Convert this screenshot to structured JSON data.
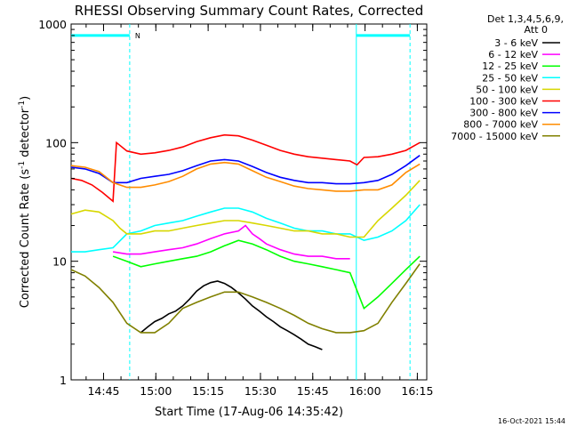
{
  "chart_data": {
    "type": "line",
    "title": "RHESSI Observing Summary Count Rates, Corrected",
    "xlabel": "Start Time (17-Aug-06 14:35:42)",
    "ylabel_main": "Corrected Count Rate (s",
    "ylabel_sup1": "-1",
    "ylabel_mid": " detector",
    "ylabel_sup2": "-1",
    "ylabel_end": ")",
    "x_unit": "minutes since 14:35:42",
    "xlim": [
      0,
      102
    ],
    "ylim": [
      1,
      1000
    ],
    "yscale": "log",
    "xticks": [
      {
        "v": 9.3,
        "label": "14:45"
      },
      {
        "v": 24.3,
        "label": "15:00"
      },
      {
        "v": 39.3,
        "label": "15:15"
      },
      {
        "v": 54.3,
        "label": "15:30"
      },
      {
        "v": 69.3,
        "label": "15:45"
      },
      {
        "v": 84.3,
        "label": "16:00"
      },
      {
        "v": 99.3,
        "label": "16:15"
      }
    ],
    "yticks": [
      {
        "v": 1,
        "label": "1"
      },
      {
        "v": 10,
        "label": "10"
      },
      {
        "v": 100,
        "label": "100"
      },
      {
        "v": 1000,
        "label": "1000"
      }
    ],
    "legend_header": [
      "Det 1,3,4,5,6,9,",
      "Att 0"
    ],
    "legend_position": "right",
    "night_flag": "N",
    "night_x": [
      0,
      16.8
    ],
    "saa_x": [
      81.8,
      97.2
    ],
    "night_level": 800,
    "series": [
      {
        "name": "3 - 6 keV",
        "color": "#000000",
        "x": [
          20,
          22,
          24,
          26,
          28,
          30,
          32,
          34,
          36,
          38,
          40,
          42,
          44,
          46,
          48,
          50,
          52,
          54,
          56,
          58,
          60,
          62,
          64,
          66,
          68,
          70,
          72
        ],
        "y": [
          2.5,
          2.8,
          3.1,
          3.3,
          3.6,
          3.8,
          4.2,
          4.8,
          5.6,
          6.2,
          6.6,
          6.8,
          6.5,
          6.0,
          5.4,
          4.8,
          4.2,
          3.8,
          3.4,
          3.1,
          2.8,
          2.6,
          2.4,
          2.2,
          2.0,
          1.9,
          1.8
        ]
      },
      {
        "name": "6 - 12 keV",
        "color": "#ff00ff",
        "x": [
          12,
          16,
          20,
          24,
          28,
          32,
          36,
          40,
          44,
          48,
          50,
          52,
          54,
          56,
          60,
          64,
          68,
          72,
          76,
          80
        ],
        "y": [
          12,
          11.5,
          11.5,
          12,
          12.5,
          13,
          14,
          15.5,
          17,
          18,
          20,
          17,
          15.5,
          14,
          12.5,
          11.5,
          11,
          11,
          10.5,
          10.5
        ]
      },
      {
        "name": "12 - 25 keV",
        "color": "#00ff00",
        "x": [
          12,
          16,
          20,
          24,
          28,
          32,
          36,
          40,
          44,
          48,
          52,
          56,
          60,
          64,
          68,
          72,
          76,
          80,
          84,
          88,
          92,
          96,
          100
        ],
        "y": [
          11,
          10,
          9,
          9.5,
          10,
          10.5,
          11,
          12,
          13.5,
          15,
          14,
          12.5,
          11,
          10,
          9.5,
          9,
          8.5,
          8,
          4,
          5,
          6.5,
          8.5,
          11
        ]
      },
      {
        "name": "25 - 50 keV",
        "color": "#00ffff",
        "x": [
          0,
          4,
          8,
          12,
          16,
          20,
          24,
          28,
          32,
          36,
          40,
          44,
          48,
          52,
          56,
          60,
          64,
          68,
          72,
          76,
          80,
          84,
          88,
          92,
          96,
          100
        ],
        "y": [
          12,
          12,
          12.5,
          13,
          17,
          18,
          20,
          21,
          22,
          24,
          26,
          28,
          28,
          26,
          23,
          21,
          19,
          18,
          18,
          17,
          17,
          15,
          16,
          18,
          22,
          30
        ]
      },
      {
        "name": "50 - 100 keV",
        "color": "#d7d700",
        "x": [
          0,
          4,
          8,
          12,
          14,
          16,
          20,
          24,
          28,
          32,
          36,
          40,
          44,
          48,
          52,
          56,
          60,
          64,
          68,
          72,
          76,
          80,
          84,
          88,
          92,
          96,
          100
        ],
        "y": [
          25,
          27,
          26,
          22,
          19,
          17,
          17,
          18,
          18,
          19,
          20,
          21,
          22,
          22,
          21,
          20,
          19,
          18,
          18,
          17,
          17,
          16,
          16,
          22,
          28,
          36,
          48
        ]
      },
      {
        "name": "100 - 300 keV",
        "color": "#ff0000",
        "x": [
          0,
          3,
          6,
          9,
          12,
          13,
          16,
          20,
          24,
          28,
          32,
          36,
          40,
          44,
          48,
          52,
          56,
          60,
          64,
          68,
          72,
          76,
          80,
          82,
          84,
          88,
          92,
          96,
          100
        ],
        "y": [
          50,
          48,
          44,
          38,
          32,
          100,
          85,
          80,
          82,
          86,
          92,
          102,
          110,
          116,
          114,
          105,
          95,
          86,
          80,
          76,
          74,
          72,
          70,
          65,
          75,
          76,
          80,
          86,
          100
        ]
      },
      {
        "name": "300 - 800 keV",
        "color": "#0000ff",
        "x": [
          0,
          4,
          8,
          12,
          16,
          20,
          24,
          28,
          32,
          36,
          40,
          44,
          48,
          52,
          56,
          60,
          64,
          68,
          72,
          76,
          80,
          84,
          88,
          92,
          96,
          100
        ],
        "y": [
          62,
          60,
          55,
          46,
          46,
          50,
          52,
          54,
          58,
          64,
          70,
          72,
          70,
          63,
          56,
          51,
          48,
          46,
          46,
          45,
          45,
          46,
          48,
          54,
          64,
          78
        ]
      },
      {
        "name": "800 - 7000 keV",
        "color": "#ff8c00",
        "x": [
          0,
          4,
          8,
          12,
          16,
          20,
          24,
          28,
          32,
          36,
          40,
          44,
          48,
          52,
          56,
          60,
          64,
          68,
          72,
          76,
          80,
          84,
          88,
          92,
          96,
          100
        ],
        "y": [
          64,
          62,
          57,
          46,
          42,
          42,
          44,
          47,
          52,
          60,
          66,
          68,
          66,
          58,
          51,
          47,
          43,
          41,
          40,
          39,
          39,
          40,
          40,
          44,
          56,
          66
        ]
      },
      {
        "name": "7000 - 15000 keV",
        "color": "#808000",
        "x": [
          0,
          4,
          8,
          12,
          16,
          20,
          24,
          28,
          32,
          36,
          40,
          44,
          48,
          52,
          56,
          60,
          64,
          68,
          72,
          76,
          80,
          84,
          88,
          92,
          96,
          100
        ],
        "y": [
          8.5,
          7.5,
          6,
          4.5,
          3,
          2.5,
          2.5,
          3,
          4,
          4.5,
          5,
          5.5,
          5.5,
          5,
          4.5,
          4,
          3.5,
          3,
          2.7,
          2.5,
          2.5,
          2.6,
          3,
          4.5,
          6.5,
          9.5
        ]
      }
    ]
  },
  "timestamp": "16-Oct-2021 15:44"
}
